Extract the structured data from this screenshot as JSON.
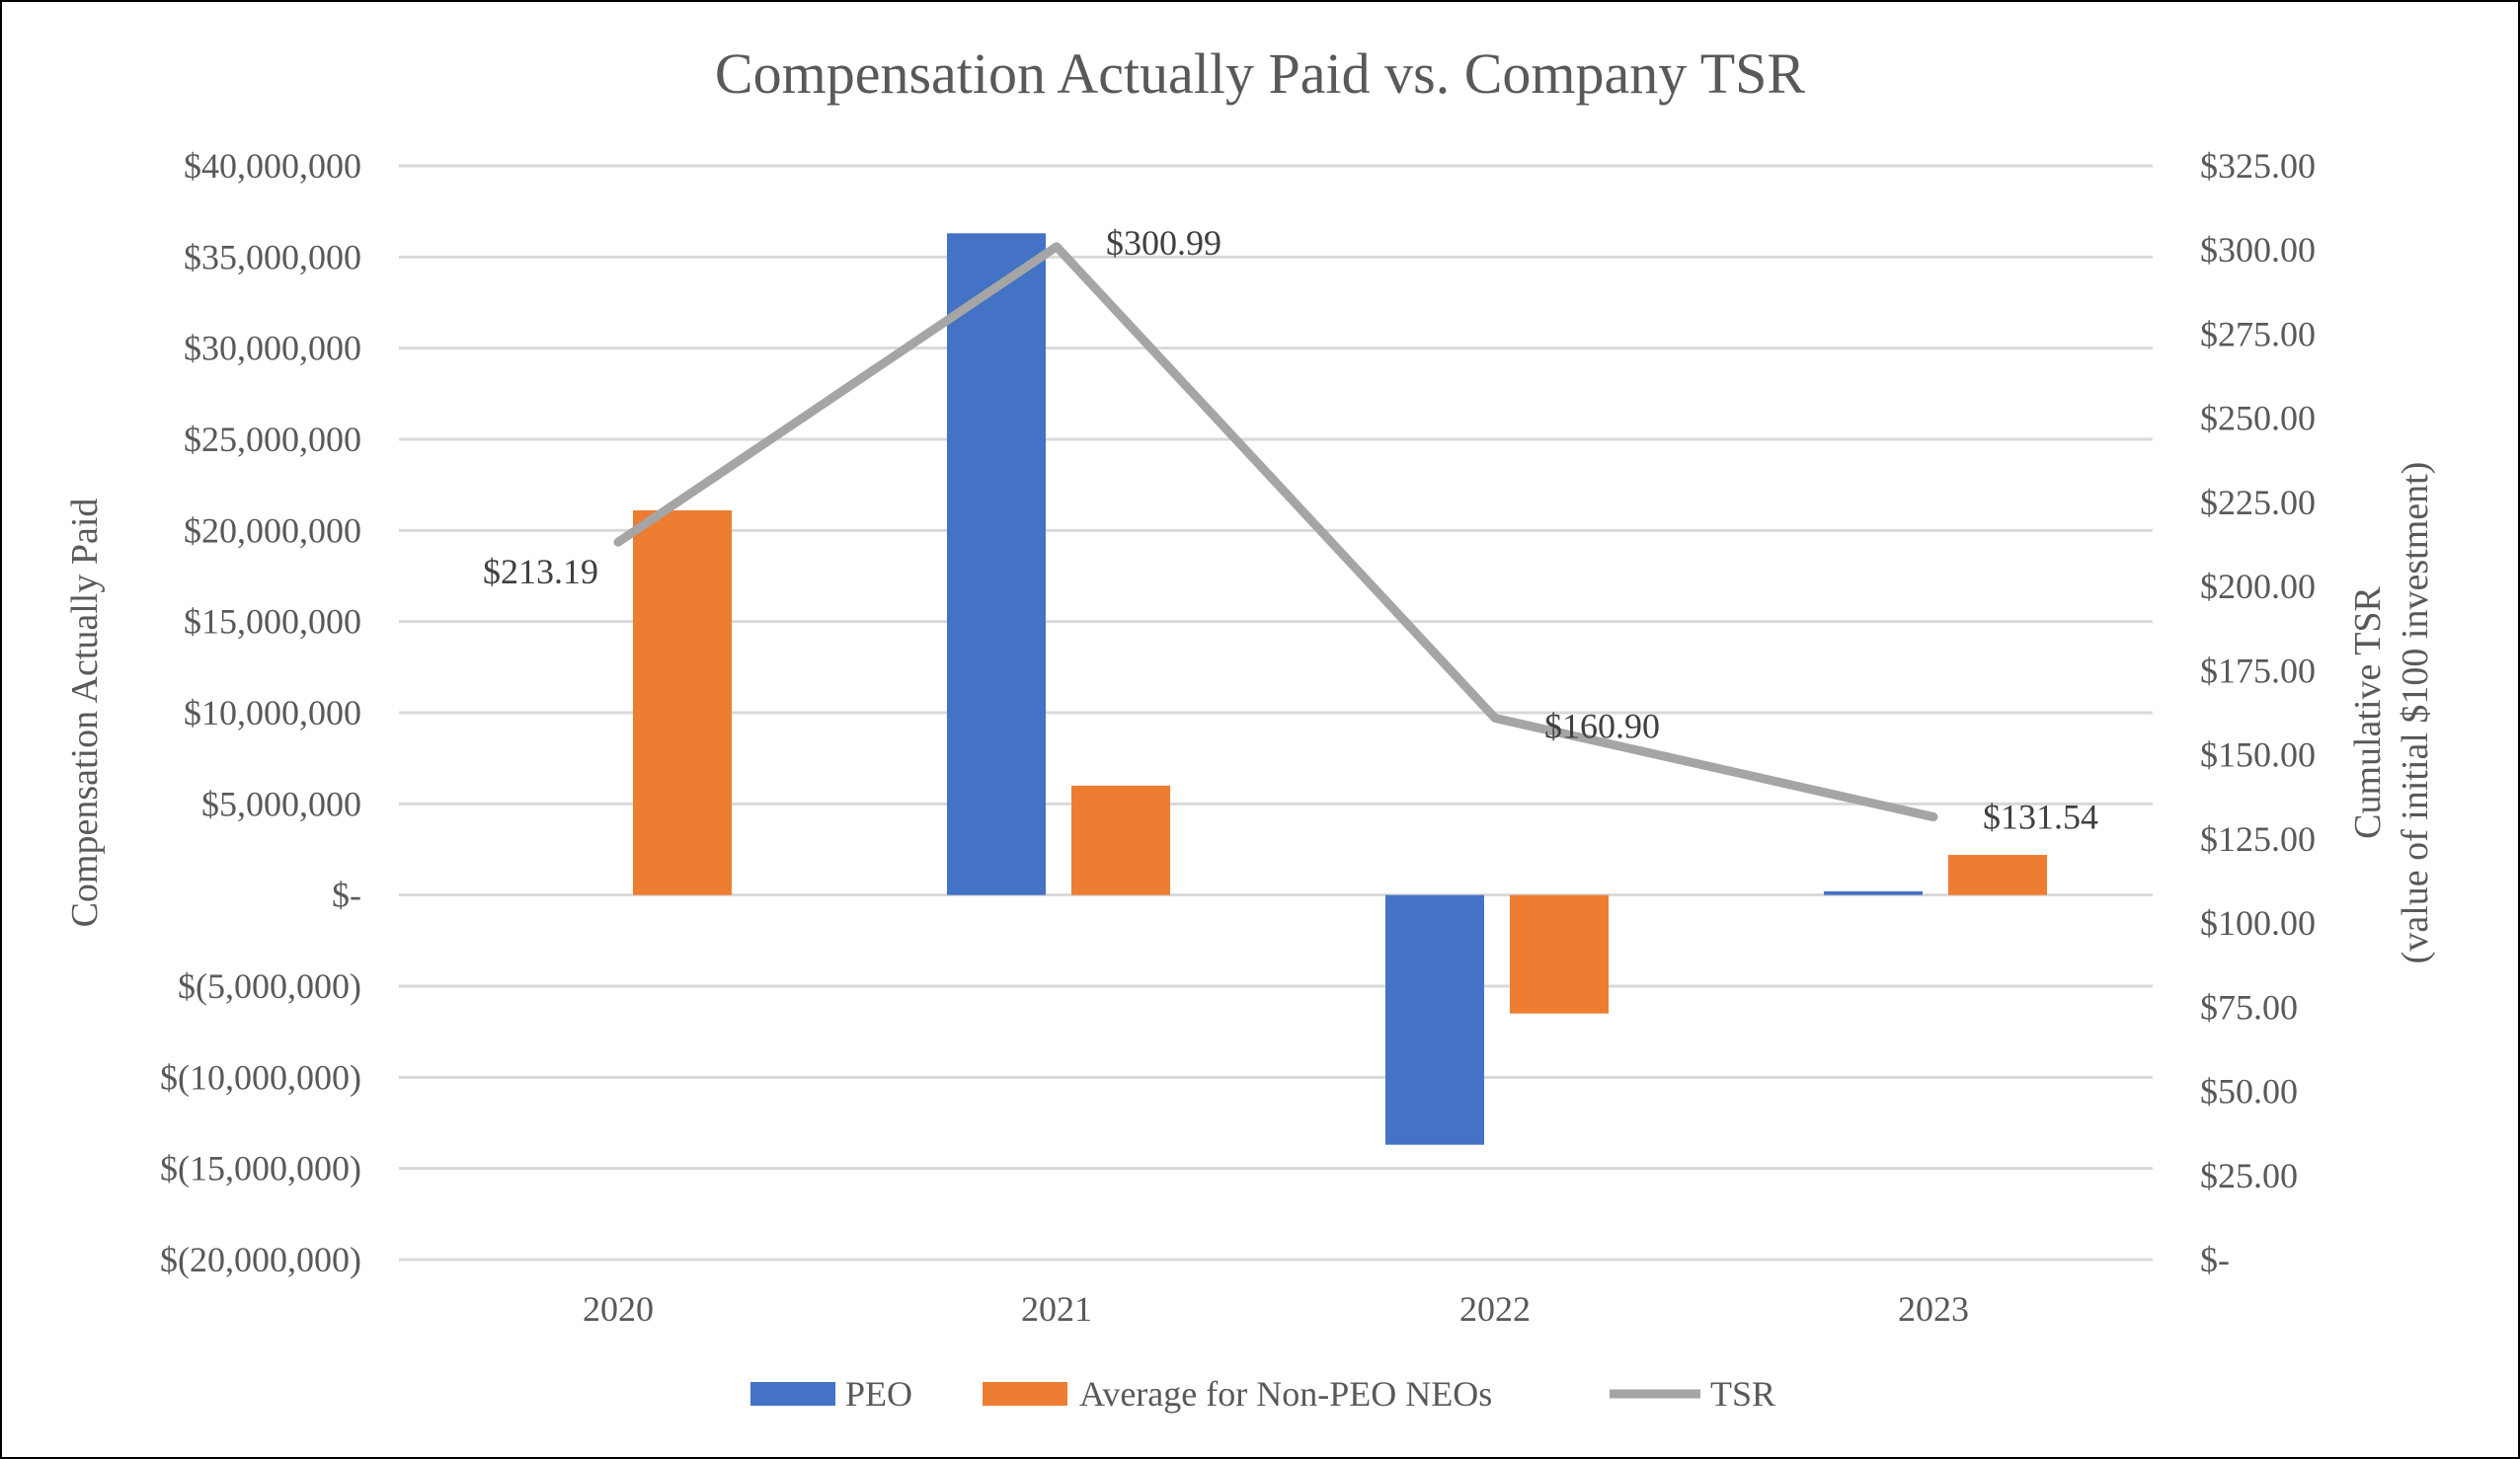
{
  "chart_data": {
    "type": "bar",
    "title": "Compensation Actually Paid vs. Company TSR",
    "categories": [
      "2020",
      "2021",
      "2022",
      "2023"
    ],
    "ylabel": "Compensation Actually Paid",
    "y2label_line1": "Cumulative TSR",
    "y2label_line2": "(value of initial $100 investment)",
    "ylim": [
      -20000000,
      40000000
    ],
    "y2lim": [
      0,
      325
    ],
    "yticks": [
      "$40,000,000",
      "$35,000,000",
      "$30,000,000",
      "$25,000,000",
      "$20,000,000",
      "$15,000,000",
      "$10,000,000",
      "$5,000,000",
      "$-",
      "$(5,000,000)",
      "$(10,000,000)",
      "$(15,000,000)",
      "$(20,000,000)"
    ],
    "y2ticks": [
      "$325.00",
      "$300.00",
      "$275.00",
      "$250.00",
      "$225.00",
      "$200.00",
      "$175.00",
      "$150.00",
      "$125.00",
      "$100.00",
      "$75.00",
      "$50.00",
      "$25.00",
      "$-"
    ],
    "grid": true,
    "legend_position": "bottom",
    "series": [
      {
        "name": "PEO",
        "type": "bar",
        "axis": "left",
        "color": "#4472C4",
        "values": [
          0,
          36300000,
          -13700000,
          200000
        ]
      },
      {
        "name": "Average for Non-PEO NEOs",
        "type": "bar",
        "axis": "left",
        "color": "#ED7D31",
        "values": [
          21100000,
          6000000,
          -6500000,
          2200000
        ]
      },
      {
        "name": "TSR",
        "type": "line",
        "axis": "right",
        "color": "#A5A5A5",
        "values": [
          213.19,
          300.99,
          160.9,
          131.54
        ],
        "labels": [
          "$213.19",
          "$300.99",
          "$160.90",
          "$131.54"
        ]
      }
    ]
  }
}
